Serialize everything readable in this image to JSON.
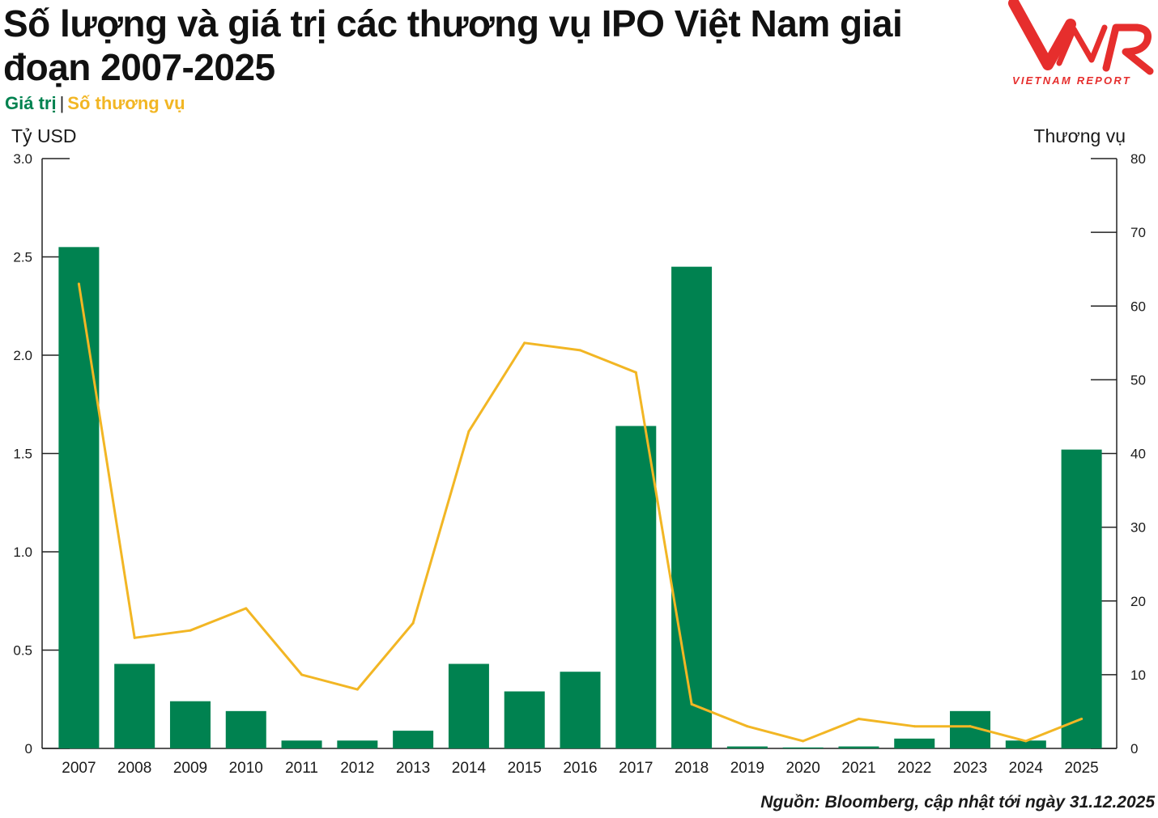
{
  "header": {
    "title": "Số lượng và giá trị các thương vụ IPO Việt Nam giai đoạn 2007-2025",
    "legend_value": "Giá trị",
    "legend_separator": "|",
    "legend_count": "Số thương vụ"
  },
  "logo": {
    "mark": "VNR",
    "text": "VIETNAM REPORT",
    "color": "#e62e2d"
  },
  "source": "Nguồn: Bloomberg, cập nhật tới ngày 31.12.2025",
  "colors": {
    "bar": "#008250",
    "line": "#f2b624",
    "axis": "#222222"
  },
  "chart_data": {
    "type": "bar",
    "xlabel": "",
    "categories": [
      "2007",
      "2008",
      "2009",
      "2010",
      "2011",
      "2012",
      "2013",
      "2014",
      "2015",
      "2016",
      "2017",
      "2018",
      "2019",
      "2020",
      "2021",
      "2022",
      "2023",
      "2024",
      "2025"
    ],
    "grid": false,
    "legend": "top-left",
    "y_left": {
      "label": "Tỷ USD",
      "range": [
        0,
        3.0
      ],
      "ticks": [
        "0",
        "0.5",
        "1.0",
        "1.5",
        "2.0",
        "2.5",
        "3.0"
      ],
      "tick_values": [
        0,
        0.5,
        1.0,
        1.5,
        2.0,
        2.5,
        3.0
      ]
    },
    "y_right": {
      "label": "Thương vụ",
      "range": [
        0,
        80
      ],
      "ticks": [
        "0",
        "10",
        "20",
        "30",
        "40",
        "50",
        "60",
        "70",
        "80"
      ],
      "tick_values": [
        0,
        10,
        20,
        30,
        40,
        50,
        60,
        70,
        80
      ]
    },
    "series": [
      {
        "name": "Giá trị",
        "type": "bar",
        "axis": "left",
        "values": [
          2.55,
          0.43,
          0.24,
          0.19,
          0.04,
          0.04,
          0.09,
          0.43,
          0.29,
          0.39,
          1.64,
          2.45,
          0.01,
          0.005,
          0.01,
          0.05,
          0.19,
          0.04,
          1.52
        ]
      },
      {
        "name": "Số thương vụ",
        "type": "line",
        "axis": "right",
        "values": [
          63,
          15,
          16,
          19,
          10,
          8,
          17,
          43,
          55,
          54,
          51,
          6,
          3,
          1,
          4,
          3,
          3,
          1,
          4
        ]
      }
    ]
  }
}
